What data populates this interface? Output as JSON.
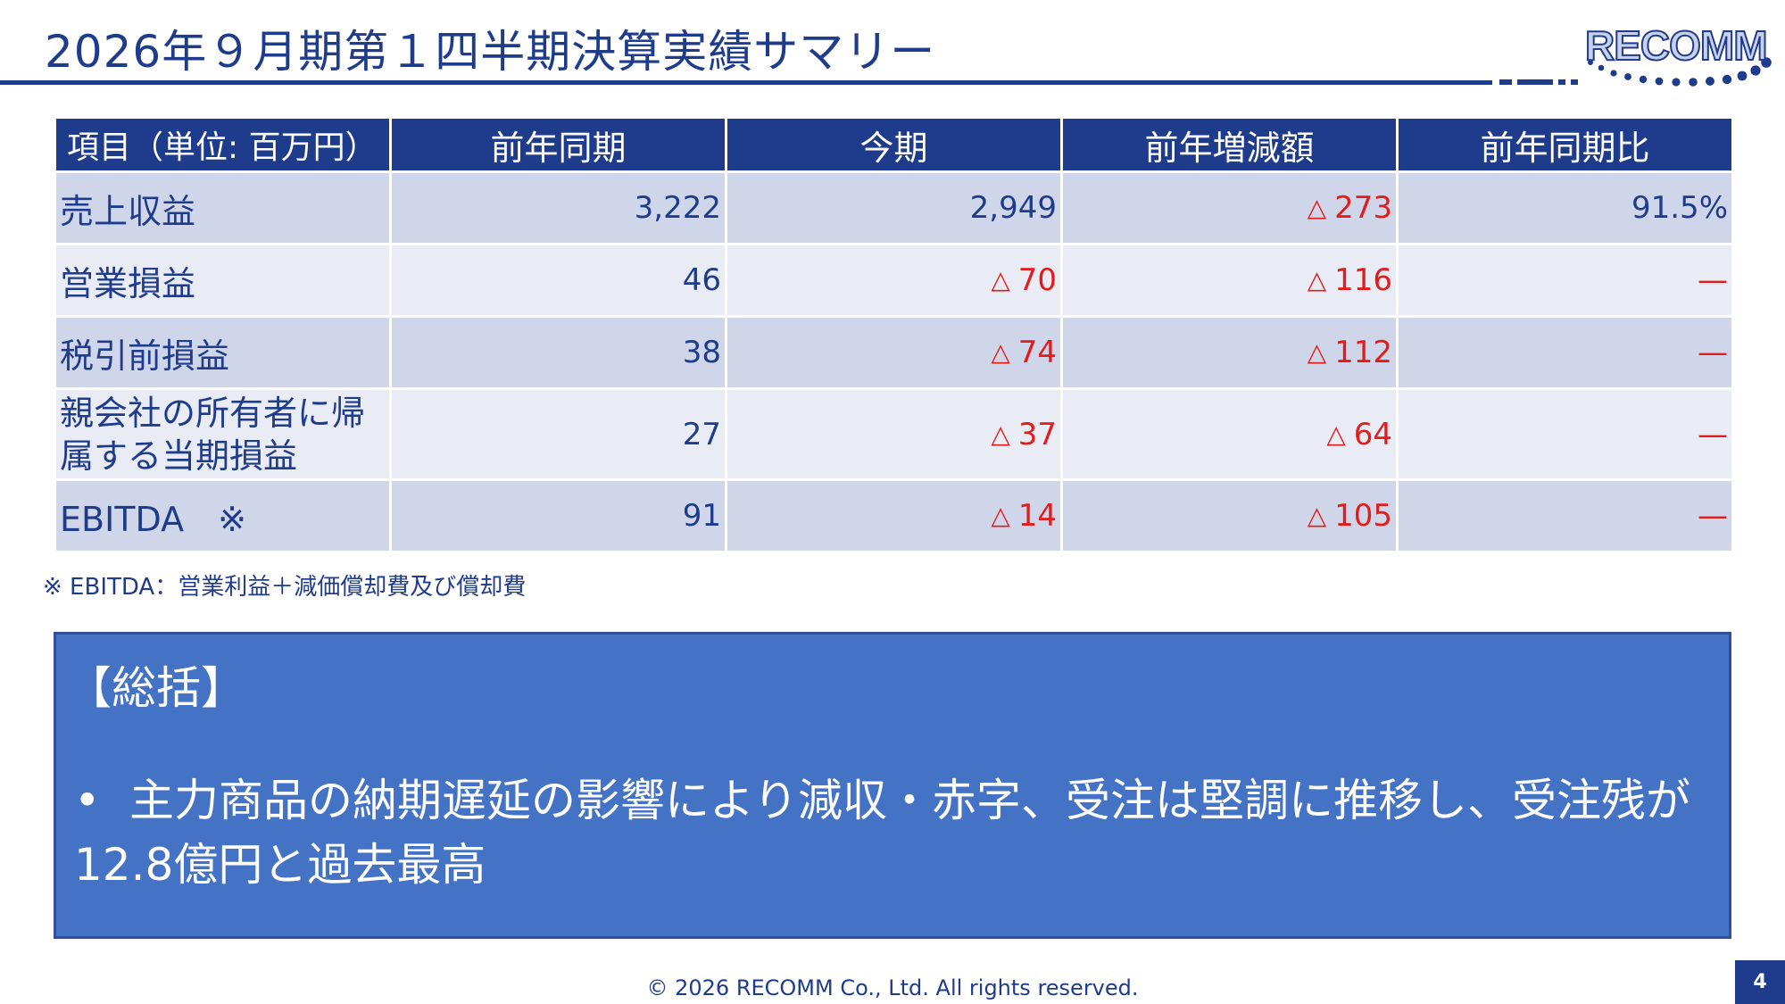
{
  "slide": {
    "title": "2026年９月期第１四半期決算実績サマリー",
    "logo_text": "RECOMM",
    "page_number": "4",
    "copyright": "© 2026 RECOMM Co., Ltd. All rights reserved."
  },
  "table": {
    "headers": [
      "項目（単位: 百万円）",
      "前年同期",
      "今期",
      "前年増減額",
      "前年同期比"
    ],
    "rows": [
      {
        "label": "売上収益",
        "prev": "3,222",
        "curr_mark": "",
        "curr": "2,949",
        "diff_mark": "△",
        "diff": "273",
        "ratio": "91.5%"
      },
      {
        "label": "営業損益",
        "prev": "46",
        "curr_mark": "△",
        "curr": "70",
        "diff_mark": "△",
        "diff": "116",
        "ratio": "—"
      },
      {
        "label": "税引前損益",
        "prev": "38",
        "curr_mark": "△",
        "curr": "74",
        "diff_mark": "△",
        "diff": "112",
        "ratio": "—"
      },
      {
        "label": "親会社の所有者に帰属する当期損益",
        "prev": "27",
        "curr_mark": "△",
        "curr": "37",
        "diff_mark": "△",
        "diff": "64",
        "ratio": "—"
      },
      {
        "label": "EBITDA　※",
        "prev": "91",
        "curr_mark": "△",
        "curr": "14",
        "diff_mark": "△",
        "diff": "105",
        "ratio": "—"
      }
    ]
  },
  "footnote": "※ EBITDA：営業利益＋減価償却費及び償却費",
  "summary": {
    "heading": "【総括】",
    "bullet": "•",
    "text": "主力商品の納期遅延の影響により減収・赤字、受注は堅調に推移し、受注残が12.8億円と過去最高"
  },
  "colors": {
    "navy": "#1f3c8c",
    "row_dark": "#d0d6e9",
    "row_light": "#e9ecf5",
    "negative_red": "#e41b1b",
    "summary_box": "#4472c4"
  }
}
